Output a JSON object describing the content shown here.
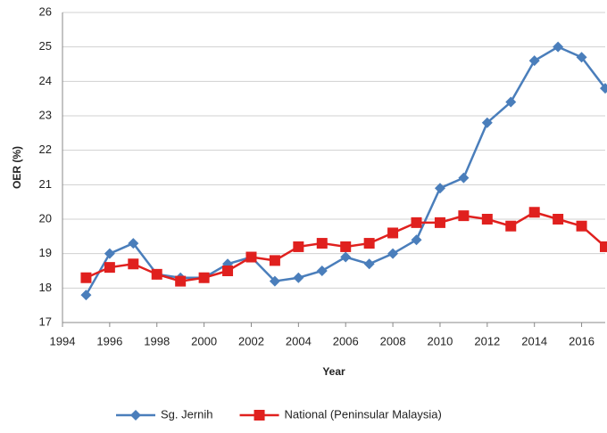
{
  "chart_data": {
    "type": "line",
    "x_label": "Year",
    "y_label": "OER (%)",
    "x": [
      1995,
      1996,
      1997,
      1998,
      1999,
      2000,
      2001,
      2002,
      2003,
      2004,
      2005,
      2006,
      2007,
      2008,
      2009,
      2010,
      2011,
      2012,
      2013,
      2014,
      2015,
      2016,
      2017
    ],
    "series": [
      {
        "name": "Sg. Jernih",
        "color": "#4a7ebb",
        "marker": "diamond",
        "values": [
          17.8,
          19.0,
          19.3,
          18.4,
          18.3,
          18.3,
          18.7,
          18.9,
          18.2,
          18.3,
          18.5,
          18.9,
          18.7,
          19.0,
          19.4,
          20.9,
          21.2,
          22.8,
          23.4,
          24.6,
          25.0,
          24.7,
          23.8
        ]
      },
      {
        "name": "National (Peninsular Malaysia)",
        "color": "#e0201e",
        "marker": "square",
        "values": [
          18.3,
          18.6,
          18.7,
          18.4,
          18.2,
          18.3,
          18.5,
          18.9,
          18.8,
          19.2,
          19.3,
          19.2,
          19.3,
          19.6,
          19.9,
          19.9,
          20.1,
          20.0,
          19.8,
          20.2,
          20.0,
          19.8,
          19.2
        ]
      }
    ],
    "xlim": [
      1994,
      2017
    ],
    "xticks": [
      1994,
      1996,
      1998,
      2000,
      2002,
      2004,
      2006,
      2008,
      2010,
      2012,
      2014,
      2016
    ],
    "ylim": [
      17,
      26
    ],
    "yticks": [
      17,
      18,
      19,
      20,
      21,
      22,
      23,
      24,
      25,
      26
    ],
    "grid": true,
    "legend": "bottom"
  }
}
